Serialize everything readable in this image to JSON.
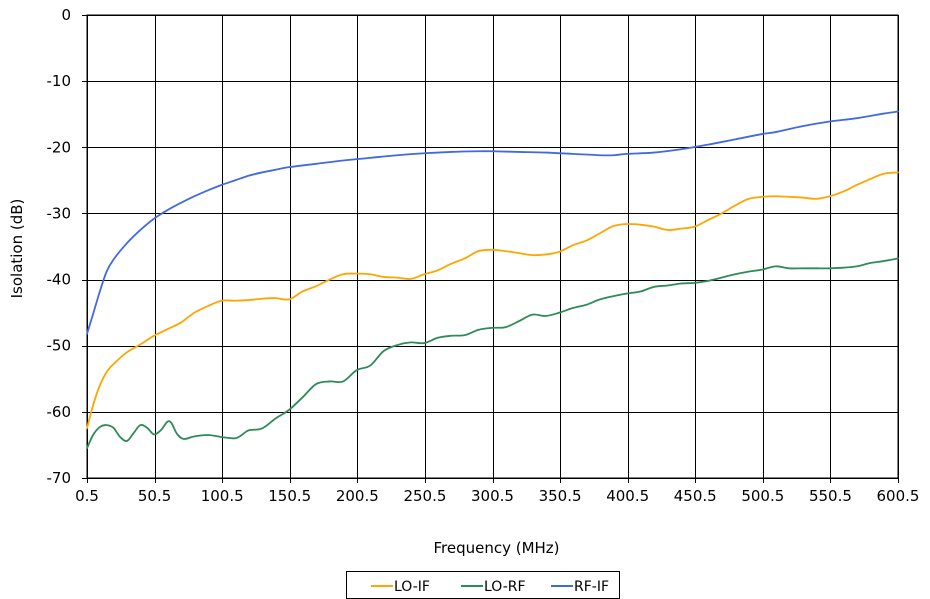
{
  "chart_data": {
    "type": "line",
    "title": "",
    "xlabel": "Frequency (MHz)",
    "ylabel": "Isolation (dB)",
    "xlim": [
      0.5,
      600.5
    ],
    "ylim": [
      -70,
      0
    ],
    "grid": true,
    "legend_position": "bottom",
    "x_ticks": [
      0.5,
      50.5,
      100.5,
      150.5,
      200.5,
      250.5,
      300.5,
      350.5,
      400.5,
      450.5,
      500.5,
      550.5,
      600.5
    ],
    "x_tick_labels": [
      "0.5",
      "50.5",
      "100.5",
      "150.5",
      "200.5",
      "250.5",
      "300.5",
      "350.5",
      "400.5",
      "450.5",
      "500.5",
      "550.5",
      "600.5"
    ],
    "y_ticks": [
      0,
      -10,
      -20,
      -30,
      -40,
      -50,
      -60,
      -70
    ],
    "y_tick_labels": [
      "0",
      "-10",
      "-20",
      "-30",
      "-40",
      "-50",
      "-60",
      "-70"
    ],
    "series": [
      {
        "name": "LO-IF",
        "color": "#ffa500",
        "points": [
          [
            0.5,
            -62.5
          ],
          [
            5,
            -59
          ],
          [
            10,
            -56
          ],
          [
            15,
            -54
          ],
          [
            20,
            -52.8
          ],
          [
            30,
            -51
          ],
          [
            40,
            -49.8
          ],
          [
            50,
            -48.5
          ],
          [
            60,
            -47.5
          ],
          [
            70,
            -46.5
          ],
          [
            80,
            -45
          ],
          [
            90,
            -44
          ],
          [
            100,
            -43.2
          ],
          [
            110,
            -43.2
          ],
          [
            120,
            -43.1
          ],
          [
            130,
            -42.9
          ],
          [
            140,
            -42.8
          ],
          [
            150,
            -43
          ],
          [
            160,
            -41.8
          ],
          [
            170,
            -41
          ],
          [
            180,
            -40
          ],
          [
            190,
            -39.2
          ],
          [
            200,
            -39.1
          ],
          [
            210,
            -39.2
          ],
          [
            220,
            -39.6
          ],
          [
            230,
            -39.7
          ],
          [
            240,
            -39.9
          ],
          [
            250,
            -39.2
          ],
          [
            260,
            -38.6
          ],
          [
            270,
            -37.6
          ],
          [
            280,
            -36.8
          ],
          [
            290,
            -35.7
          ],
          [
            300,
            -35.5
          ],
          [
            310,
            -35.7
          ],
          [
            320,
            -36
          ],
          [
            330,
            -36.3
          ],
          [
            340,
            -36.2
          ],
          [
            350,
            -35.8
          ],
          [
            360,
            -34.8
          ],
          [
            370,
            -34.1
          ],
          [
            380,
            -33
          ],
          [
            390,
            -31.9
          ],
          [
            400,
            -31.6
          ],
          [
            410,
            -31.7
          ],
          [
            420,
            -32
          ],
          [
            430,
            -32.5
          ],
          [
            440,
            -32.3
          ],
          [
            450,
            -32
          ],
          [
            460,
            -31
          ],
          [
            470,
            -30
          ],
          [
            480,
            -28.8
          ],
          [
            490,
            -27.8
          ],
          [
            500,
            -27.5
          ],
          [
            510,
            -27.4
          ],
          [
            520,
            -27.5
          ],
          [
            530,
            -27.6
          ],
          [
            540,
            -27.8
          ],
          [
            550,
            -27.4
          ],
          [
            560,
            -26.7
          ],
          [
            570,
            -25.7
          ],
          [
            580,
            -24.8
          ],
          [
            590,
            -24
          ],
          [
            600.5,
            -23.8
          ]
        ]
      },
      {
        "name": "LO-RF",
        "color": "#2e8b57",
        "points": [
          [
            0.5,
            -65.5
          ],
          [
            5,
            -63.5
          ],
          [
            10,
            -62.3
          ],
          [
            15,
            -62
          ],
          [
            20,
            -62.4
          ],
          [
            25,
            -63.8
          ],
          [
            30,
            -64.4
          ],
          [
            35,
            -63.2
          ],
          [
            40,
            -62
          ],
          [
            45,
            -62.4
          ],
          [
            50,
            -63.4
          ],
          [
            55,
            -62.8
          ],
          [
            60,
            -61.5
          ],
          [
            63,
            -61.7
          ],
          [
            67,
            -63.3
          ],
          [
            72,
            -64.1
          ],
          [
            80,
            -63.7
          ],
          [
            90,
            -63.5
          ],
          [
            100,
            -63.8
          ],
          [
            110,
            -64
          ],
          [
            115,
            -63.5
          ],
          [
            120,
            -62.8
          ],
          [
            130,
            -62.5
          ],
          [
            140,
            -61
          ],
          [
            150,
            -59.7
          ],
          [
            160,
            -57.8
          ],
          [
            170,
            -55.8
          ],
          [
            180,
            -55.4
          ],
          [
            190,
            -55.4
          ],
          [
            200,
            -53.7
          ],
          [
            210,
            -53
          ],
          [
            220,
            -50.8
          ],
          [
            230,
            -49.9
          ],
          [
            240,
            -49.5
          ],
          [
            250,
            -49.6
          ],
          [
            260,
            -48.8
          ],
          [
            270,
            -48.5
          ],
          [
            280,
            -48.4
          ],
          [
            290,
            -47.6
          ],
          [
            300,
            -47.3
          ],
          [
            310,
            -47.2
          ],
          [
            320,
            -46.3
          ],
          [
            330,
            -45.3
          ],
          [
            340,
            -45.5
          ],
          [
            350,
            -45
          ],
          [
            360,
            -44.3
          ],
          [
            370,
            -43.8
          ],
          [
            380,
            -43
          ],
          [
            390,
            -42.5
          ],
          [
            400,
            -42.1
          ],
          [
            410,
            -41.8
          ],
          [
            420,
            -41.1
          ],
          [
            430,
            -40.9
          ],
          [
            440,
            -40.6
          ],
          [
            450,
            -40.5
          ],
          [
            460,
            -40.2
          ],
          [
            470,
            -39.7
          ],
          [
            480,
            -39.2
          ],
          [
            490,
            -38.8
          ],
          [
            500,
            -38.5
          ],
          [
            510,
            -38
          ],
          [
            520,
            -38.3
          ],
          [
            530,
            -38.3
          ],
          [
            540,
            -38.3
          ],
          [
            550,
            -38.3
          ],
          [
            560,
            -38.2
          ],
          [
            570,
            -38
          ],
          [
            580,
            -37.5
          ],
          [
            590,
            -37.2
          ],
          [
            600.5,
            -36.8
          ]
        ]
      },
      {
        "name": "RF-IF",
        "color": "#4169e1",
        "points": [
          [
            0.5,
            -48.2
          ],
          [
            5,
            -45.2
          ],
          [
            10,
            -41.8
          ],
          [
            15,
            -38.8
          ],
          [
            20,
            -37
          ],
          [
            30,
            -34.5
          ],
          [
            40,
            -32.5
          ],
          [
            50,
            -30.8
          ],
          [
            60,
            -29.5
          ],
          [
            70,
            -28.4
          ],
          [
            80,
            -27.4
          ],
          [
            90,
            -26.5
          ],
          [
            100,
            -25.7
          ],
          [
            110,
            -25
          ],
          [
            120,
            -24.3
          ],
          [
            130,
            -23.8
          ],
          [
            140,
            -23.4
          ],
          [
            150,
            -23
          ],
          [
            170,
            -22.5
          ],
          [
            190,
            -22
          ],
          [
            210,
            -21.6
          ],
          [
            230,
            -21.2
          ],
          [
            250,
            -20.9
          ],
          [
            270,
            -20.7
          ],
          [
            290,
            -20.6
          ],
          [
            300,
            -20.6
          ],
          [
            320,
            -20.7
          ],
          [
            340,
            -20.8
          ],
          [
            360,
            -21
          ],
          [
            380,
            -21.2
          ],
          [
            390,
            -21.2
          ],
          [
            400,
            -21
          ],
          [
            420,
            -20.8
          ],
          [
            440,
            -20.3
          ],
          [
            460,
            -19.6
          ],
          [
            480,
            -18.8
          ],
          [
            500,
            -18
          ],
          [
            510,
            -17.7
          ],
          [
            530,
            -16.8
          ],
          [
            550,
            -16.1
          ],
          [
            570,
            -15.6
          ],
          [
            590,
            -14.9
          ],
          [
            600.5,
            -14.6
          ]
        ]
      }
    ]
  }
}
